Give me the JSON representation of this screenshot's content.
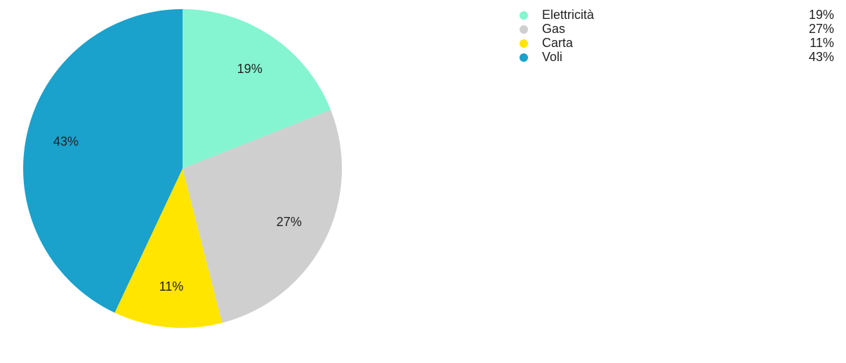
{
  "chart_data": {
    "type": "pie",
    "categories": [
      "Elettricità",
      "Gas",
      "Carta",
      "Voli"
    ],
    "values": [
      19,
      27,
      11,
      43
    ],
    "value_labels": [
      "19%",
      "27%",
      "11%",
      "43%"
    ],
    "colors": [
      "#84f5d0",
      "#cfcfcf",
      "#ffe500",
      "#1aa1cc"
    ],
    "legend": "top-right"
  }
}
